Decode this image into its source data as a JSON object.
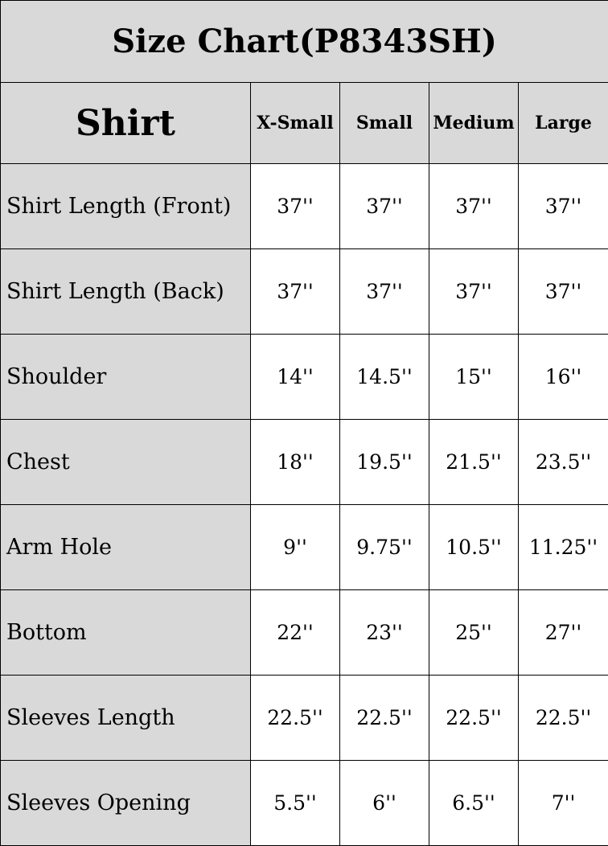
{
  "title": "Size Chart(P8343SH)",
  "header": {
    "section": "Shirt",
    "sizes": [
      "X-Small",
      "Small",
      "Medium",
      "Large"
    ]
  },
  "rows": [
    {
      "label": "Shirt Length (Front)",
      "values": [
        "37''",
        "37''",
        "37''",
        "37''"
      ]
    },
    {
      "label": "Shirt Length (Back)",
      "values": [
        "37''",
        "37''",
        "37''",
        "37''"
      ]
    },
    {
      "label": "Shoulder",
      "values": [
        "14''",
        "14.5''",
        "15''",
        "16''"
      ]
    },
    {
      "label": "Chest",
      "values": [
        "18''",
        "19.5''",
        "21.5''",
        "23.5''"
      ]
    },
    {
      "label": "Arm Hole",
      "values": [
        "9''",
        "9.75''",
        "10.5''",
        "11.25''"
      ]
    },
    {
      "label": "Bottom",
      "values": [
        "22''",
        "23''",
        "25''",
        "27''"
      ]
    },
    {
      "label": "Sleeves Length",
      "values": [
        "22.5''",
        "22.5''",
        "22.5''",
        "22.5''"
      ]
    },
    {
      "label": "Sleeves Opening",
      "values": [
        "5.5''",
        "6''",
        "6.5''",
        "7''"
      ]
    }
  ],
  "colors": {
    "header_bg": "#d9d9d9",
    "border": "#000000"
  }
}
